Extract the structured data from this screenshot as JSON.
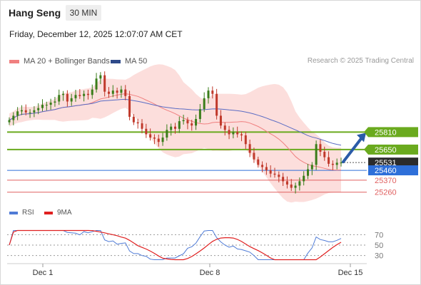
{
  "header": {
    "title": "Hang Seng",
    "timeframe": "30 MIN"
  },
  "date_line": "Friday, December 12, 2025 12:07:07 AM CET",
  "legend": {
    "bollinger": "MA 20 + Bollinger Bands",
    "ma50": "MA 50",
    "credit": "Research © 2025 Trading Central"
  },
  "rsi_legend": {
    "rsi": "RSI",
    "ma": "9MA"
  },
  "colors": {
    "bull": "#3a7d1a",
    "bear": "#c0392b",
    "bollinger_fill": "#fbd3d0",
    "ma20": "#f08080",
    "ma50": "#5b6cc4",
    "resistance": "#6aaa1e",
    "support": "#e06060",
    "pivot": "#2e6fd9",
    "last_price": "#2b2b2b",
    "arrow": "#2a5ba8",
    "rsi_line": "#4f7bd6",
    "rsi_ma": "#e02020"
  },
  "chart_data": [
    {
      "type": "line",
      "panel": "price",
      "x_ticks": [
        "Dec 1",
        "Dec 8",
        "Dec 15"
      ],
      "ylim": [
        25180,
        26380
      ],
      "levels": [
        {
          "value": 25810,
          "label": "25810",
          "kind": "resistance"
        },
        {
          "value": 25650,
          "label": "25650",
          "kind": "resistance"
        },
        {
          "value": 25531,
          "label": "25531",
          "kind": "last"
        },
        {
          "value": 25460,
          "label": "25460",
          "kind": "pivot"
        },
        {
          "value": 25370,
          "label": "25370",
          "kind": "support"
        },
        {
          "value": 25260,
          "label": "25260",
          "kind": "support"
        }
      ],
      "close_series": [
        25920,
        25960,
        26000,
        26010,
        25990,
        25990,
        26010,
        26030,
        26060,
        26060,
        26080,
        26090,
        26150,
        26160,
        26090,
        26120,
        26150,
        26140,
        26160,
        26150,
        26200,
        26300,
        26330,
        26180,
        26160,
        26190,
        26170,
        26200,
        26140,
        25950,
        25900,
        25890,
        25840,
        25790,
        25760,
        25750,
        25720,
        25760,
        25830,
        25860,
        25840,
        25910,
        25920,
        25890,
        25870,
        25930,
        26020,
        26120,
        26190,
        26160,
        25960,
        25870,
        25830,
        25790,
        25810,
        25790,
        25780,
        25700,
        25620,
        25560,
        25510,
        25490,
        25460,
        25430,
        25420,
        25400,
        25360,
        25330,
        25300,
        25320,
        25360,
        25410,
        25470,
        25510,
        25700,
        25630,
        25580,
        25520,
        25510,
        25530,
        25531
      ],
      "rsi": {
        "ylim": [
          20,
          80
        ],
        "ticks": [
          70,
          50,
          30
        ]
      }
    }
  ]
}
